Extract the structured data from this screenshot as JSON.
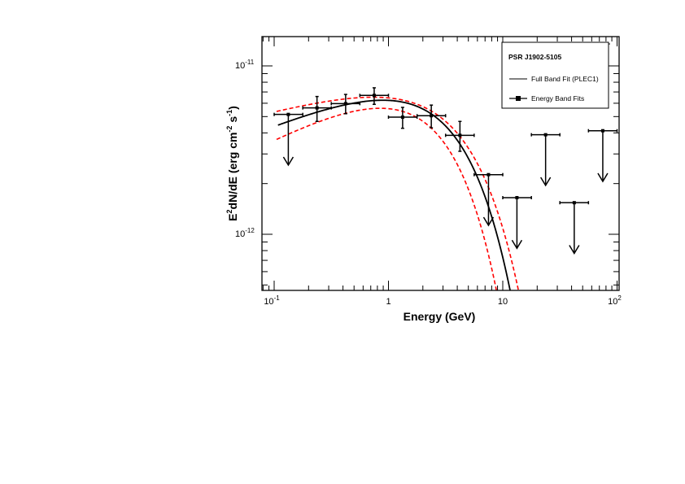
{
  "chart_data": {
    "type": "scatter",
    "title": "",
    "xlabel": "Energy (GeV)",
    "ylabel": "E²dN/dE (erg cm⁻² s⁻¹)",
    "ylabel_parts": {
      "a": "E",
      "b": "2",
      "c": "dN/dE (erg cm",
      "d": "-2",
      "e": " s",
      "f": "-1",
      "g": ")"
    },
    "x_scale": "log",
    "y_scale": "log",
    "xlim": [
      0.08,
      110
    ],
    "ylim": [
      4.64e-13,
      1.49e-11
    ],
    "grid": false,
    "x_ticks": [
      {
        "value": 0.1,
        "base": "10",
        "exp": "-1"
      },
      {
        "value": 1,
        "base": "1",
        "exp": ""
      },
      {
        "value": 10,
        "base": "10",
        "exp": ""
      },
      {
        "value": 100,
        "base": "10",
        "exp": "2"
      }
    ],
    "y_ticks": [
      {
        "value": 1e-11,
        "base": "10",
        "exp": "-11"
      },
      {
        "value": 1e-12,
        "base": "10",
        "exp": "-12"
      }
    ],
    "legend": {
      "placement": "top-right",
      "title": "PSR J1902-5105",
      "entries": [
        "Full Band Fit (PLEC1)",
        "Energy Band Fits"
      ]
    },
    "band_edges_gev": [
      0.1,
      0.178,
      0.316,
      0.562,
      1.0,
      1.78,
      3.16,
      5.62,
      10.0,
      17.8,
      31.6,
      56.2,
      100.0
    ],
    "points": [
      {
        "e": 0.133,
        "flux": 5.15e-12,
        "upper_limit": true
      },
      {
        "e": 0.237,
        "flux": 5.63e-12,
        "lo": 4.68e-12,
        "hi": 6.58e-12,
        "upper_limit": false
      },
      {
        "e": 0.422,
        "flux": 5.97e-12,
        "lo": 5.2e-12,
        "hi": 6.77e-12,
        "upper_limit": false
      },
      {
        "e": 0.75,
        "flux": 6.68e-12,
        "lo": 5.91e-12,
        "hi": 7.41e-12,
        "upper_limit": false
      },
      {
        "e": 1.33,
        "flux": 4.96e-12,
        "lo": 4.26e-12,
        "hi": 5.67e-12,
        "upper_limit": false
      },
      {
        "e": 2.37,
        "flux": 5.06e-12,
        "lo": 4.29e-12,
        "hi": 5.85e-12,
        "upper_limit": false
      },
      {
        "e": 4.22,
        "flux": 3.87e-12,
        "lo": 3.11e-12,
        "hi": 4.68e-12,
        "upper_limit": false
      },
      {
        "e": 7.5,
        "flux": 2.26e-12,
        "upper_limit": true
      },
      {
        "e": 13.3,
        "flux": 1.65e-12,
        "upper_limit": true
      },
      {
        "e": 23.7,
        "flux": 3.9e-12,
        "upper_limit": true
      },
      {
        "e": 42.2,
        "flux": 1.54e-12,
        "upper_limit": true
      },
      {
        "e": 75.0,
        "flux": 4.12e-12,
        "upper_limit": true
      }
    ],
    "curves": [
      {
        "role": "fit",
        "model": "PLEC1",
        "prefactor": 8.5e-12,
        "index": 1.724,
        "cutoff_gev": 3.235,
        "e_min": 0.108,
        "color": "#000000",
        "style": "solid"
      },
      {
        "role": "upper-error",
        "model": "PLEC1",
        "prefactor": 8.24e-12,
        "index": 1.821,
        "cutoff_gev": 4.1,
        "e_min": 0.105,
        "color": "#ff0000",
        "style": "dashed"
      },
      {
        "role": "lower-error",
        "model": "PLEC1",
        "prefactor": 8.45e-12,
        "index": 1.648,
        "cutoff_gev": 2.4,
        "e_min": 0.105,
        "color": "#ff0000",
        "style": "dashed"
      }
    ]
  }
}
